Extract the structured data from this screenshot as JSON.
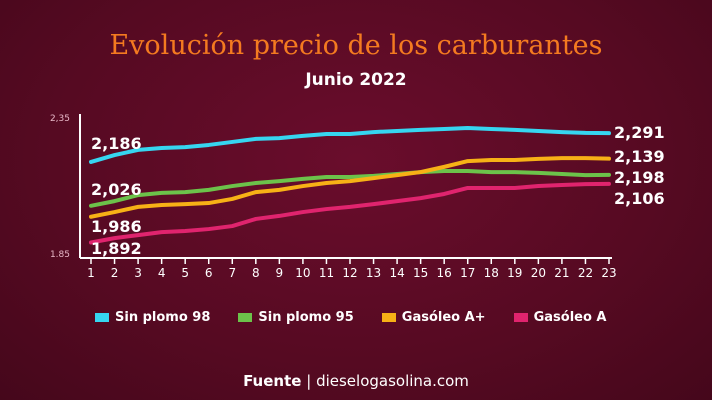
{
  "chart_data": {
    "type": "line",
    "title": "Evolución precio de los carburantes",
    "subtitle": "Junio 2022",
    "x": [
      1,
      2,
      3,
      4,
      5,
      6,
      7,
      8,
      9,
      10,
      11,
      12,
      13,
      14,
      15,
      16,
      17,
      18,
      19,
      20,
      21,
      22,
      23
    ],
    "ylim": [
      1.85,
      2.35
    ],
    "ytick_labels": [
      "2,35",
      "1.85"
    ],
    "grid": false,
    "legend": "bottom",
    "series": [
      {
        "name": "Sin plomo 98",
        "color": "#36d6f0",
        "values": [
          2.186,
          2.211,
          2.23,
          2.237,
          2.24,
          2.248,
          2.259,
          2.27,
          2.273,
          2.281,
          2.288,
          2.288,
          2.295,
          2.299,
          2.303,
          2.306,
          2.31,
          2.306,
          2.303,
          2.299,
          2.295,
          2.292,
          2.291
        ],
        "start_label": "2,186",
        "end_label": "2,291"
      },
      {
        "name": "Sin plomo 95",
        "color": "#6cc24a",
        "values": [
          2.026,
          2.043,
          2.065,
          2.073,
          2.076,
          2.084,
          2.098,
          2.109,
          2.116,
          2.124,
          2.131,
          2.131,
          2.135,
          2.142,
          2.149,
          2.153,
          2.153,
          2.149,
          2.149,
          2.146,
          2.142,
          2.138,
          2.139
        ],
        "start_label": "2,026",
        "end_label": "2,139"
      },
      {
        "name": "Gasóleo A+",
        "color": "#f7b116",
        "values": [
          1.986,
          2.003,
          2.022,
          2.029,
          2.032,
          2.036,
          2.051,
          2.076,
          2.084,
          2.098,
          2.109,
          2.116,
          2.127,
          2.138,
          2.149,
          2.168,
          2.189,
          2.193,
          2.193,
          2.197,
          2.2,
          2.2,
          2.198
        ],
        "start_label": "1,986",
        "end_label": "2,198"
      },
      {
        "name": "Gasóleo A",
        "color": "#e0246e",
        "values": [
          1.892,
          1.908,
          1.919,
          1.93,
          1.934,
          1.941,
          1.952,
          1.978,
          1.989,
          2.003,
          2.014,
          2.022,
          2.032,
          2.043,
          2.054,
          2.069,
          2.091,
          2.091,
          2.091,
          2.098,
          2.102,
          2.105,
          2.106
        ],
        "start_label": "1,892",
        "end_label": "2,106"
      }
    ]
  },
  "source": {
    "label": "Fuente",
    "separator": "|",
    "site": "dieselogasolina.com"
  }
}
